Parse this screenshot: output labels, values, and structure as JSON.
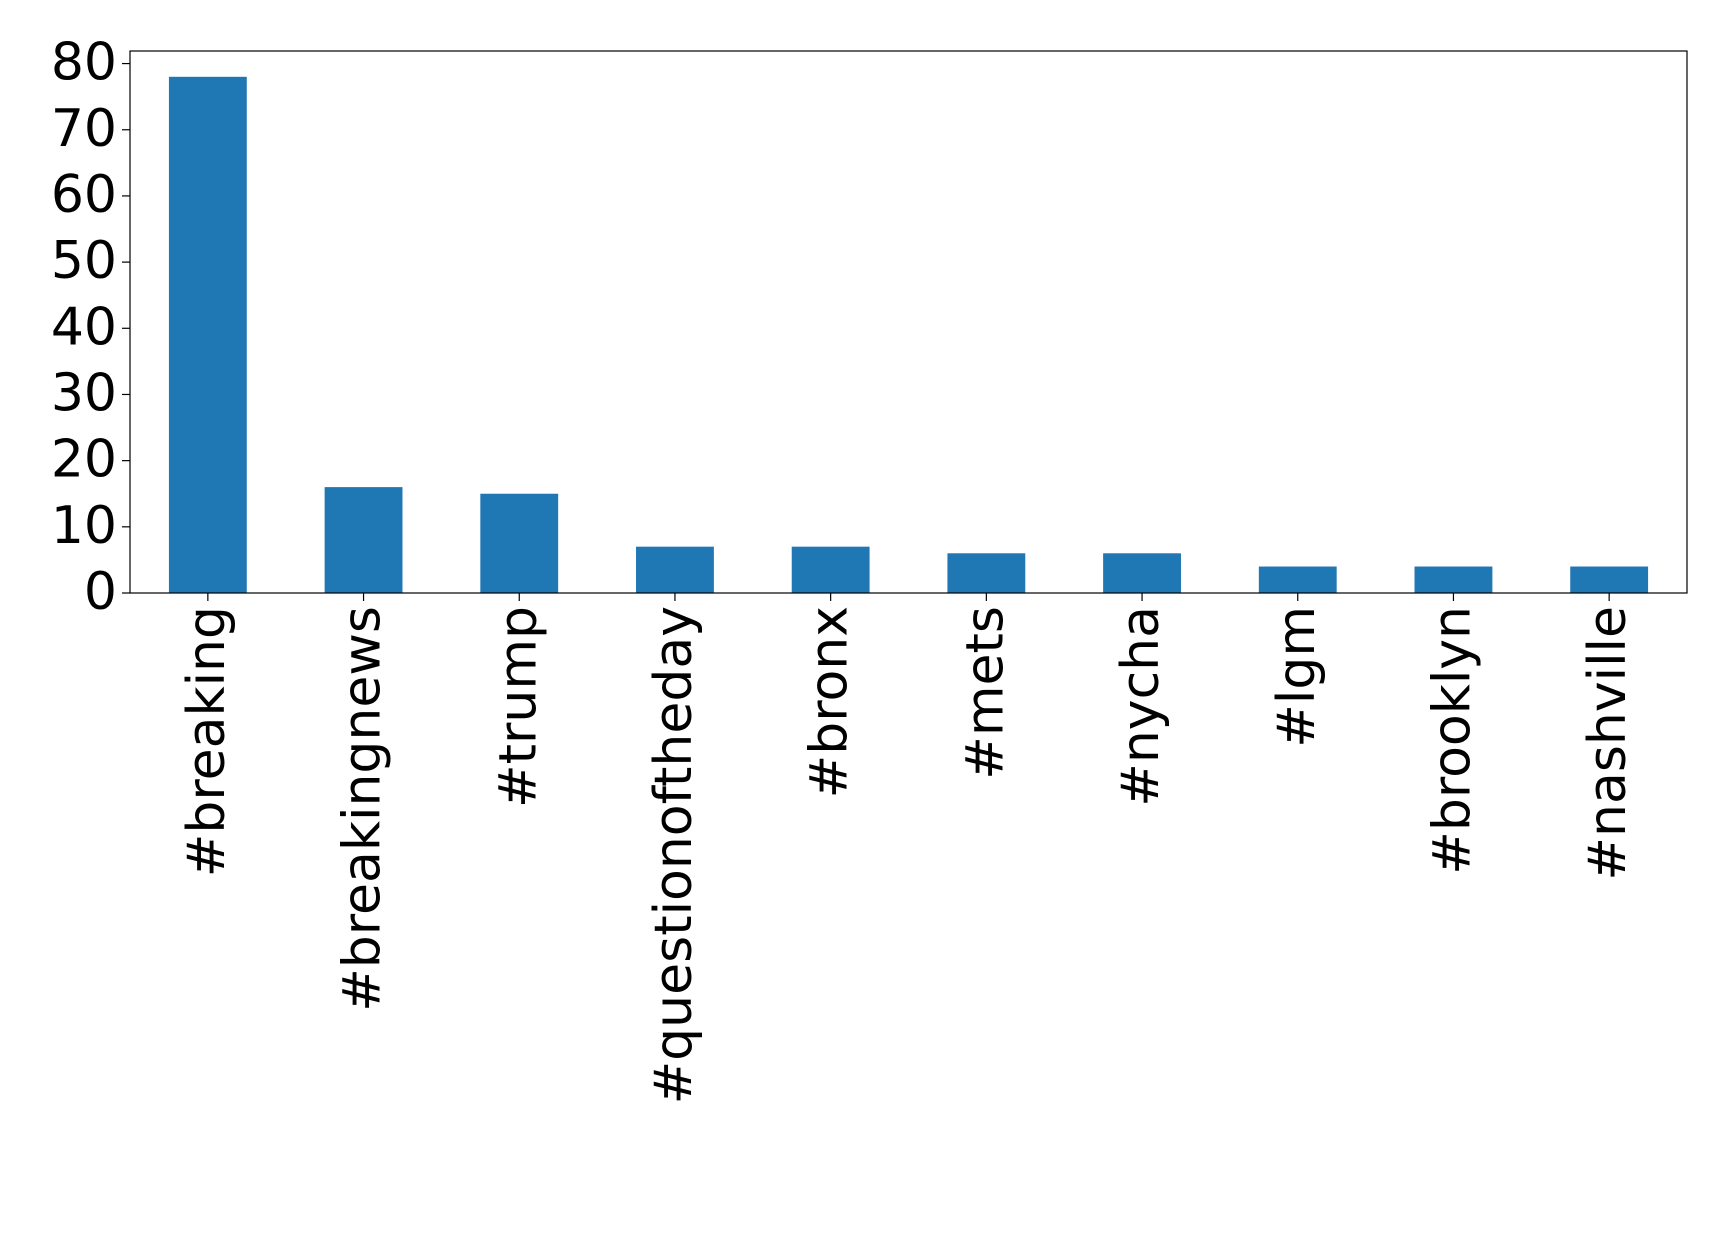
{
  "chart_data": {
    "type": "bar",
    "categories": [
      "#breaking",
      "#breakingnews",
      "#trump",
      "#questionoftheday",
      "#bronx",
      "#mets",
      "#nycha",
      "#lgm",
      "#brooklyn",
      "#nashville"
    ],
    "values": [
      78,
      16,
      15,
      7,
      7,
      6,
      6,
      4,
      4,
      4
    ],
    "color": "#1f77b4",
    "ylim": [
      0,
      81.9
    ],
    "yticks": [
      0,
      10,
      20,
      30,
      40,
      50,
      60,
      70,
      80
    ],
    "grid": false
  }
}
